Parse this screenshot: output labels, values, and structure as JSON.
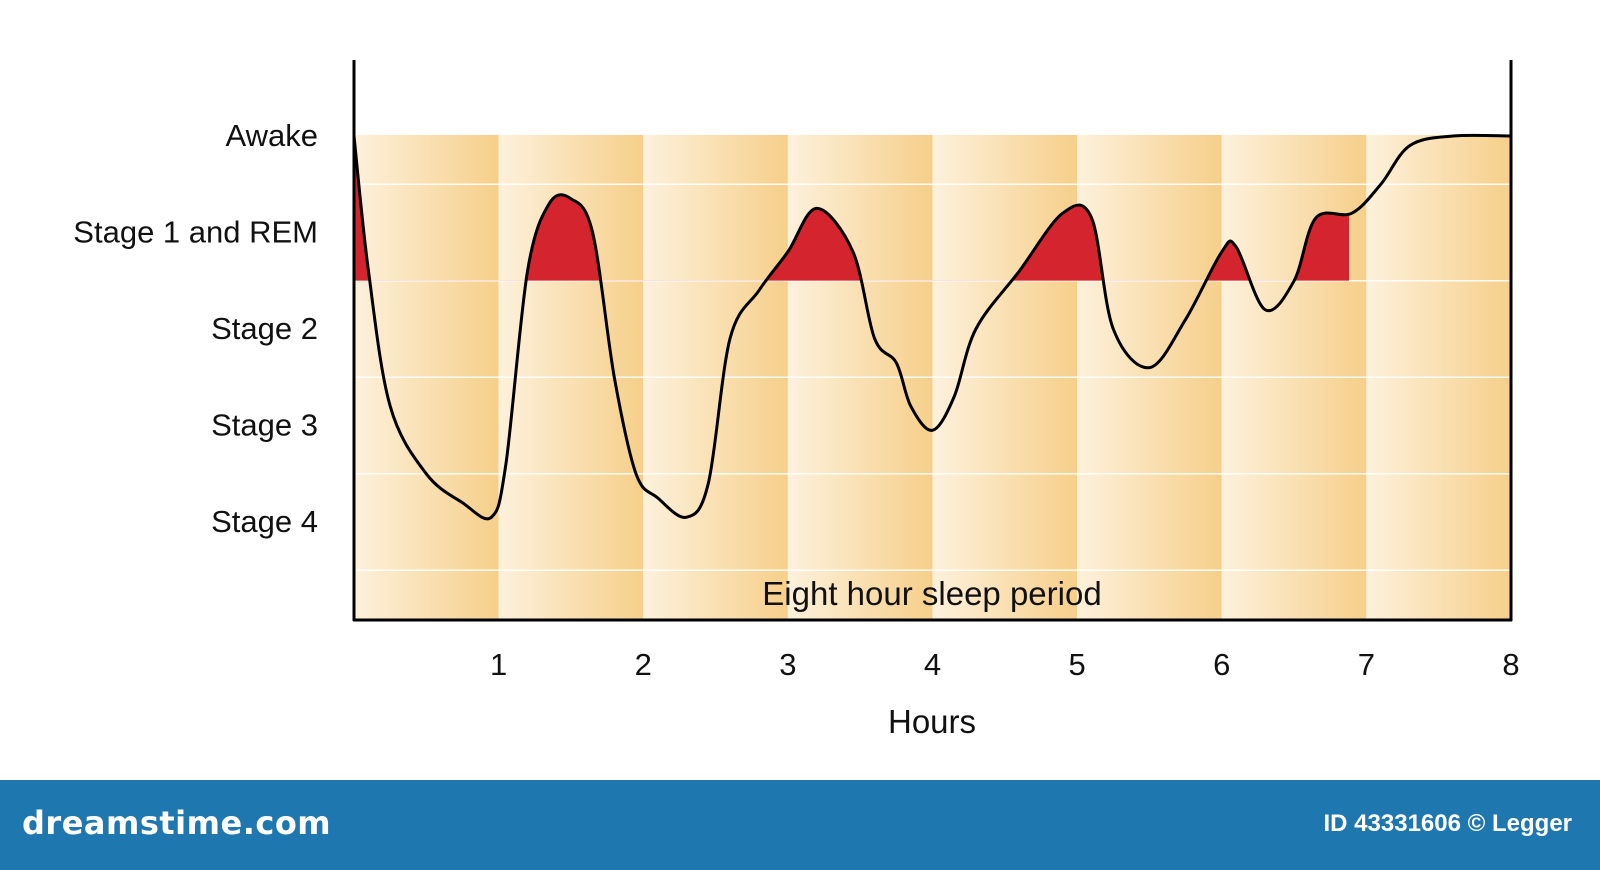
{
  "chart_data": {
    "type": "line",
    "annotation": "Eight hour sleep period",
    "xlabel": "Hours",
    "x_ticks": [
      "1",
      "2",
      "3",
      "4",
      "5",
      "6",
      "7",
      "8"
    ],
    "xlim": [
      0,
      8
    ],
    "y_levels": [
      "Awake",
      "Stage 1 and REM",
      "Stage 2",
      "Stage 3",
      "Stage 4"
    ],
    "y_level_values": [
      5,
      4,
      3,
      2,
      1
    ],
    "ylim": [
      0.35,
      5
    ],
    "rem_threshold": 3.5,
    "series": [
      {
        "x": [
          0.0,
          0.1,
          0.25,
          0.5,
          0.75,
          0.95,
          1.05,
          1.2,
          1.35,
          1.5,
          1.65,
          1.8,
          1.95,
          2.1,
          2.3,
          2.45,
          2.6,
          2.8,
          3.0,
          3.2,
          3.45,
          3.6,
          3.75,
          3.85,
          4.0,
          4.15,
          4.3,
          4.6,
          4.9,
          5.1,
          5.25,
          5.5,
          5.75,
          6.0,
          6.1,
          6.3,
          6.5,
          6.65,
          6.9,
          7.1,
          7.3,
          7.6,
          8.0
        ],
        "y": [
          5.0,
          3.6,
          2.2,
          1.5,
          1.2,
          1.05,
          1.6,
          3.6,
          4.3,
          4.35,
          4.0,
          2.5,
          1.5,
          1.25,
          1.05,
          1.4,
          2.9,
          3.4,
          3.8,
          4.25,
          3.8,
          2.9,
          2.65,
          2.2,
          1.95,
          2.3,
          3.0,
          3.6,
          4.2,
          4.15,
          3.0,
          2.6,
          3.1,
          3.8,
          3.85,
          3.2,
          3.5,
          4.15,
          4.2,
          4.5,
          4.9,
          5.0,
          5.0
        ]
      }
    ]
  },
  "footer": {
    "logo": "dreamstime.com",
    "id_text": "ID 43331606 © Legger"
  },
  "colors": {
    "band_dark": "#f6cf8a",
    "band_light": "#fdf1dc",
    "rem_fill": "#d4242d",
    "curve": "#000000",
    "footer_bg": "#1f77b0"
  }
}
